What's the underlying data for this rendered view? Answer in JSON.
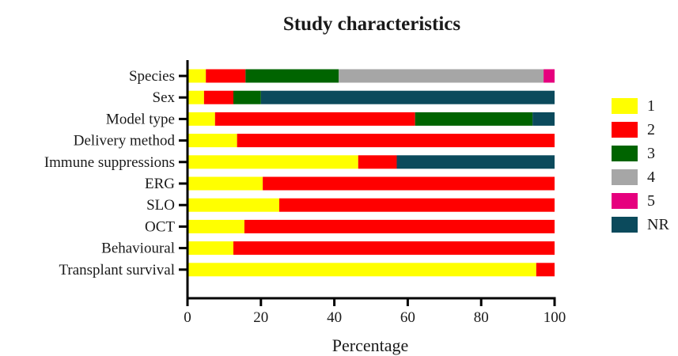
{
  "chart_data": {
    "type": "bar",
    "orientation": "horizontal",
    "stacked": true,
    "title": "Study characteristics",
    "xlabel": "Percentage",
    "ylabel": "",
    "xlim": [
      0,
      100
    ],
    "xticks": [
      "0",
      "20",
      "40",
      "60",
      "80",
      "100"
    ],
    "grid": false,
    "legend_position": "right",
    "categories": [
      "Species",
      "Sex",
      "Model type",
      "Delivery method",
      "Immune suppressions",
      "ERG",
      "SLO",
      "OCT",
      "Behavioural",
      "Transplant survival"
    ],
    "series": [
      {
        "name": "1",
        "color": "#ffff00",
        "values": [
          5,
          4.5,
          7.5,
          13.5,
          46.5,
          20.5,
          25,
          15.5,
          12.5,
          95
        ]
      },
      {
        "name": "2",
        "color": "#ff0000",
        "values": [
          10.8,
          8,
          54.5,
          86.5,
          10.5,
          79.5,
          75,
          84.5,
          87.5,
          5
        ]
      },
      {
        "name": "3",
        "color": "#006400",
        "values": [
          25.4,
          7.5,
          32,
          0,
          0,
          0,
          0,
          0,
          0,
          0
        ]
      },
      {
        "name": "4",
        "color": "#a6a6a6",
        "values": [
          55.8,
          0,
          0,
          0,
          0,
          0,
          0,
          0,
          0,
          0
        ]
      },
      {
        "name": "5",
        "color": "#e6007e",
        "values": [
          3,
          0,
          0,
          0,
          0,
          0,
          0,
          0,
          0,
          0
        ]
      },
      {
        "name": "NR",
        "color": "#0b4a5c",
        "values": [
          0,
          80,
          6,
          0,
          43,
          0,
          0,
          0,
          0,
          0
        ]
      }
    ]
  }
}
